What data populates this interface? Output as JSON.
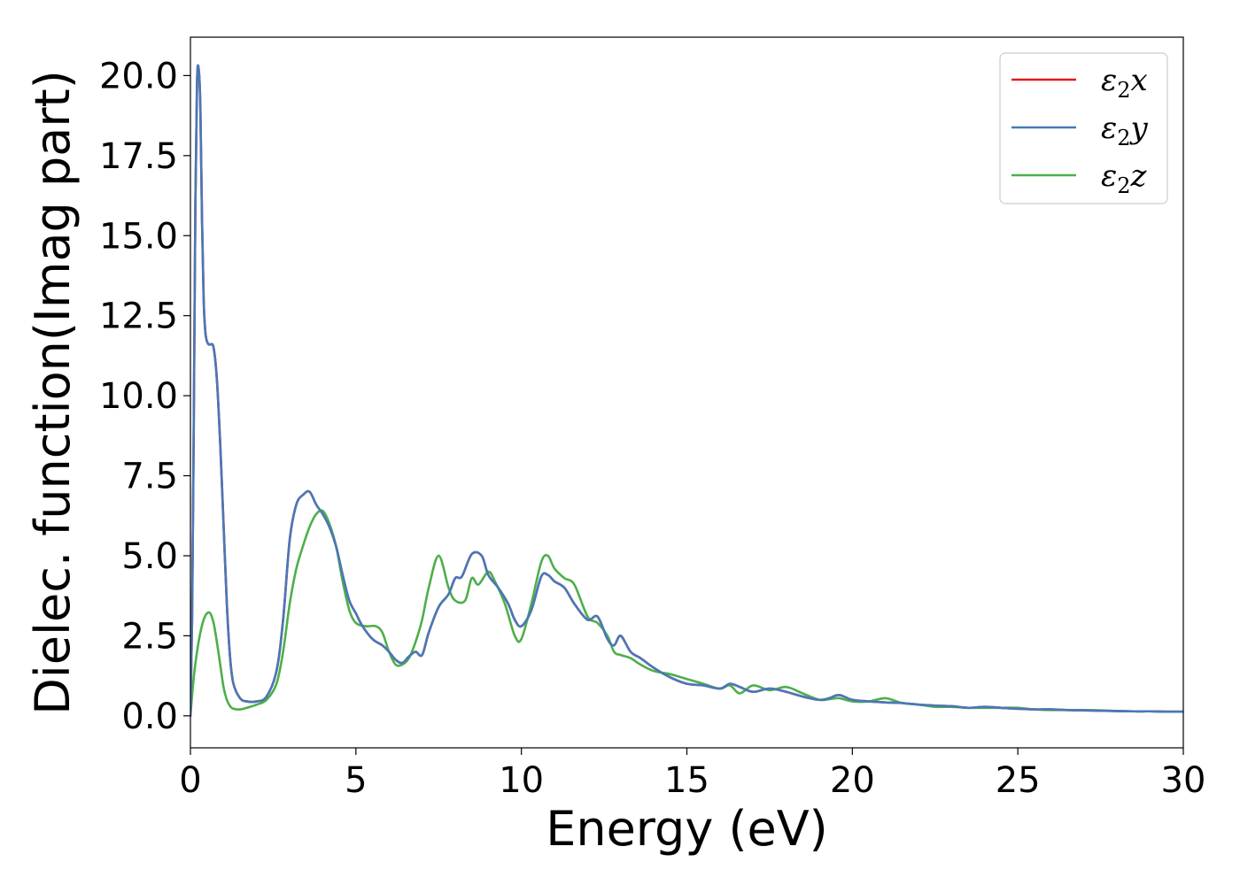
{
  "chart_data": {
    "type": "line",
    "title": "",
    "xlabel": "Energy (eV)",
    "ylabel": "Dielec. function(Imag part)",
    "xlim": [
      0,
      30
    ],
    "ylim": [
      -1.0,
      21.2
    ],
    "xticks": [
      0,
      5,
      10,
      15,
      20,
      25,
      30
    ],
    "yticks": [
      0.0,
      2.5,
      5.0,
      7.5,
      10.0,
      12.5,
      15.0,
      17.5,
      20.0
    ],
    "xtick_labels": [
      "0",
      "5",
      "10",
      "15",
      "20",
      "25",
      "30"
    ],
    "ytick_labels": [
      "0.0",
      "2.5",
      "5.0",
      "7.5",
      "10.0",
      "12.5",
      "15.0",
      "17.5",
      "20.0"
    ],
    "grid": false,
    "legend_position": "top-right",
    "series": [
      {
        "name": "ε₂x",
        "legend": {
          "main": "ε",
          "sub": "2",
          "tail": "x"
        },
        "color": "#e41a1c",
        "x": [
          0,
          0.05,
          0.1,
          0.15,
          0.2,
          0.25,
          0.3,
          0.35,
          0.4,
          0.45,
          0.5,
          0.55,
          0.6,
          0.7,
          0.8,
          0.9,
          1.0,
          1.1,
          1.2,
          1.3,
          1.5,
          1.7,
          2.0,
          2.3,
          2.6,
          2.8,
          3.0,
          3.2,
          3.4,
          3.6,
          3.8,
          4.0,
          4.2,
          4.4,
          4.6,
          4.8,
          5.0,
          5.2,
          5.5,
          5.8,
          6.0,
          6.2,
          6.4,
          6.6,
          6.8,
          7.0,
          7.2,
          7.5,
          7.8,
          8.0,
          8.2,
          8.5,
          8.8,
          9.0,
          9.3,
          9.6,
          9.8,
          10.0,
          10.3,
          10.6,
          10.8,
          11.0,
          11.3,
          11.6,
          12.0,
          12.3,
          12.6,
          12.8,
          13.0,
          13.3,
          13.6,
          14.0,
          14.5,
          15.0,
          15.5,
          16.0,
          16.3,
          16.6,
          17.0,
          17.5,
          18.0,
          18.5,
          19.0,
          19.3,
          19.6,
          20.0,
          20.5,
          21.0,
          21.5,
          22.0,
          22.5,
          23.0,
          23.5,
          24.0,
          24.5,
          25.0,
          25.5,
          26.0,
          26.5,
          27.0,
          27.5,
          28.0,
          28.5,
          29.0,
          29.5,
          30.0
        ],
        "y": [
          0.0,
          3.0,
          9.0,
          16.0,
          19.8,
          20.2,
          19.0,
          15.5,
          13.0,
          12.0,
          11.7,
          11.6,
          11.6,
          11.5,
          10.5,
          8.5,
          6.0,
          3.5,
          1.8,
          1.0,
          0.55,
          0.45,
          0.45,
          0.6,
          1.4,
          3.0,
          5.5,
          6.6,
          6.9,
          7.0,
          6.6,
          6.3,
          5.9,
          5.3,
          4.4,
          3.6,
          3.2,
          2.8,
          2.4,
          2.2,
          2.0,
          1.75,
          1.65,
          1.85,
          2.0,
          1.9,
          2.6,
          3.4,
          3.8,
          4.3,
          4.35,
          5.05,
          5.0,
          4.4,
          4.0,
          3.5,
          3.0,
          2.8,
          3.3,
          4.35,
          4.4,
          4.2,
          4.0,
          3.5,
          3.0,
          3.1,
          2.4,
          2.2,
          2.5,
          2.0,
          1.8,
          1.5,
          1.2,
          1.0,
          0.95,
          0.85,
          1.0,
          0.9,
          0.75,
          0.85,
          0.75,
          0.6,
          0.5,
          0.55,
          0.65,
          0.5,
          0.45,
          0.42,
          0.4,
          0.35,
          0.32,
          0.3,
          0.25,
          0.28,
          0.25,
          0.22,
          0.2,
          0.2,
          0.18,
          0.17,
          0.16,
          0.15,
          0.14,
          0.14,
          0.13,
          0.13
        ]
      },
      {
        "name": "ε₂y",
        "legend": {
          "main": "ε",
          "sub": "2",
          "tail": "y"
        },
        "color": "#4878b8",
        "x": [
          0,
          0.05,
          0.1,
          0.15,
          0.2,
          0.25,
          0.3,
          0.35,
          0.4,
          0.45,
          0.5,
          0.55,
          0.6,
          0.7,
          0.8,
          0.9,
          1.0,
          1.1,
          1.2,
          1.3,
          1.5,
          1.7,
          2.0,
          2.3,
          2.6,
          2.8,
          3.0,
          3.2,
          3.4,
          3.6,
          3.8,
          4.0,
          4.2,
          4.4,
          4.6,
          4.8,
          5.0,
          5.2,
          5.5,
          5.8,
          6.0,
          6.2,
          6.4,
          6.6,
          6.8,
          7.0,
          7.2,
          7.5,
          7.8,
          8.0,
          8.2,
          8.5,
          8.8,
          9.0,
          9.3,
          9.6,
          9.8,
          10.0,
          10.3,
          10.6,
          10.8,
          11.0,
          11.3,
          11.6,
          12.0,
          12.3,
          12.6,
          12.8,
          13.0,
          13.3,
          13.6,
          14.0,
          14.5,
          15.0,
          15.5,
          16.0,
          16.3,
          16.6,
          17.0,
          17.5,
          18.0,
          18.5,
          19.0,
          19.3,
          19.6,
          20.0,
          20.5,
          21.0,
          21.5,
          22.0,
          22.5,
          23.0,
          23.5,
          24.0,
          24.5,
          25.0,
          25.5,
          26.0,
          26.5,
          27.0,
          27.5,
          28.0,
          28.5,
          29.0,
          29.5,
          30.0
        ],
        "y": [
          0.0,
          3.0,
          9.0,
          16.0,
          19.8,
          20.2,
          19.0,
          15.5,
          13.0,
          12.0,
          11.7,
          11.6,
          11.6,
          11.5,
          10.5,
          8.5,
          6.0,
          3.5,
          1.8,
          1.0,
          0.55,
          0.45,
          0.45,
          0.6,
          1.4,
          3.0,
          5.5,
          6.6,
          6.9,
          7.0,
          6.6,
          6.3,
          5.9,
          5.3,
          4.4,
          3.6,
          3.2,
          2.8,
          2.4,
          2.2,
          2.0,
          1.75,
          1.65,
          1.85,
          2.0,
          1.9,
          2.6,
          3.4,
          3.8,
          4.3,
          4.35,
          5.05,
          5.0,
          4.4,
          4.0,
          3.5,
          3.0,
          2.8,
          3.3,
          4.35,
          4.4,
          4.2,
          4.0,
          3.5,
          3.0,
          3.1,
          2.4,
          2.2,
          2.5,
          2.0,
          1.8,
          1.5,
          1.2,
          1.0,
          0.95,
          0.85,
          1.0,
          0.9,
          0.75,
          0.85,
          0.75,
          0.6,
          0.5,
          0.55,
          0.65,
          0.5,
          0.45,
          0.42,
          0.4,
          0.35,
          0.32,
          0.3,
          0.25,
          0.28,
          0.25,
          0.22,
          0.2,
          0.2,
          0.18,
          0.17,
          0.16,
          0.15,
          0.14,
          0.14,
          0.13,
          0.13
        ]
      },
      {
        "name": "ε₂z",
        "legend": {
          "main": "ε",
          "sub": "2",
          "tail": "z"
        },
        "color": "#4daf4a",
        "x": [
          0,
          0.1,
          0.2,
          0.3,
          0.4,
          0.5,
          0.6,
          0.7,
          0.8,
          0.9,
          1.0,
          1.1,
          1.2,
          1.3,
          1.5,
          1.7,
          2.0,
          2.3,
          2.6,
          2.8,
          3.0,
          3.2,
          3.4,
          3.6,
          3.8,
          4.0,
          4.2,
          4.4,
          4.6,
          4.8,
          5.0,
          5.3,
          5.6,
          5.8,
          6.0,
          6.2,
          6.4,
          6.6,
          6.8,
          7.0,
          7.2,
          7.5,
          7.8,
          8.0,
          8.3,
          8.5,
          8.7,
          9.0,
          9.2,
          9.5,
          9.8,
          10.0,
          10.3,
          10.6,
          10.8,
          11.0,
          11.3,
          11.6,
          12.0,
          12.3,
          12.6,
          12.8,
          13.0,
          13.3,
          13.6,
          14.0,
          14.5,
          15.0,
          15.5,
          16.0,
          16.3,
          16.6,
          17.0,
          17.5,
          18.0,
          18.5,
          19.0,
          19.3,
          19.6,
          20.0,
          20.5,
          21.0,
          21.5,
          22.0,
          22.5,
          23.0,
          23.5,
          24.0,
          24.5,
          25.0,
          25.5,
          26.0,
          26.5,
          27.0,
          27.5,
          28.0,
          28.5,
          29.0,
          29.5,
          30.0
        ],
        "y": [
          0.0,
          1.2,
          2.0,
          2.6,
          3.0,
          3.2,
          3.2,
          2.9,
          2.3,
          1.6,
          0.9,
          0.5,
          0.3,
          0.22,
          0.2,
          0.25,
          0.35,
          0.5,
          1.0,
          2.0,
          3.5,
          4.6,
          5.3,
          5.9,
          6.3,
          6.4,
          6.0,
          5.3,
          4.2,
          3.3,
          2.9,
          2.8,
          2.8,
          2.6,
          2.0,
          1.6,
          1.6,
          1.8,
          2.3,
          3.0,
          4.0,
          5.0,
          4.0,
          3.6,
          3.6,
          4.3,
          4.1,
          4.5,
          4.2,
          3.5,
          2.5,
          2.4,
          3.5,
          4.8,
          5.0,
          4.6,
          4.3,
          4.1,
          3.1,
          2.9,
          2.5,
          2.0,
          1.9,
          1.8,
          1.6,
          1.4,
          1.3,
          1.15,
          1.0,
          0.85,
          0.95,
          0.7,
          0.95,
          0.8,
          0.9,
          0.7,
          0.5,
          0.52,
          0.55,
          0.45,
          0.45,
          0.55,
          0.4,
          0.35,
          0.28,
          0.28,
          0.25,
          0.25,
          0.25,
          0.25,
          0.2,
          0.18,
          0.18,
          0.18,
          0.17,
          0.15,
          0.14,
          0.14,
          0.13,
          0.13
        ]
      }
    ]
  }
}
